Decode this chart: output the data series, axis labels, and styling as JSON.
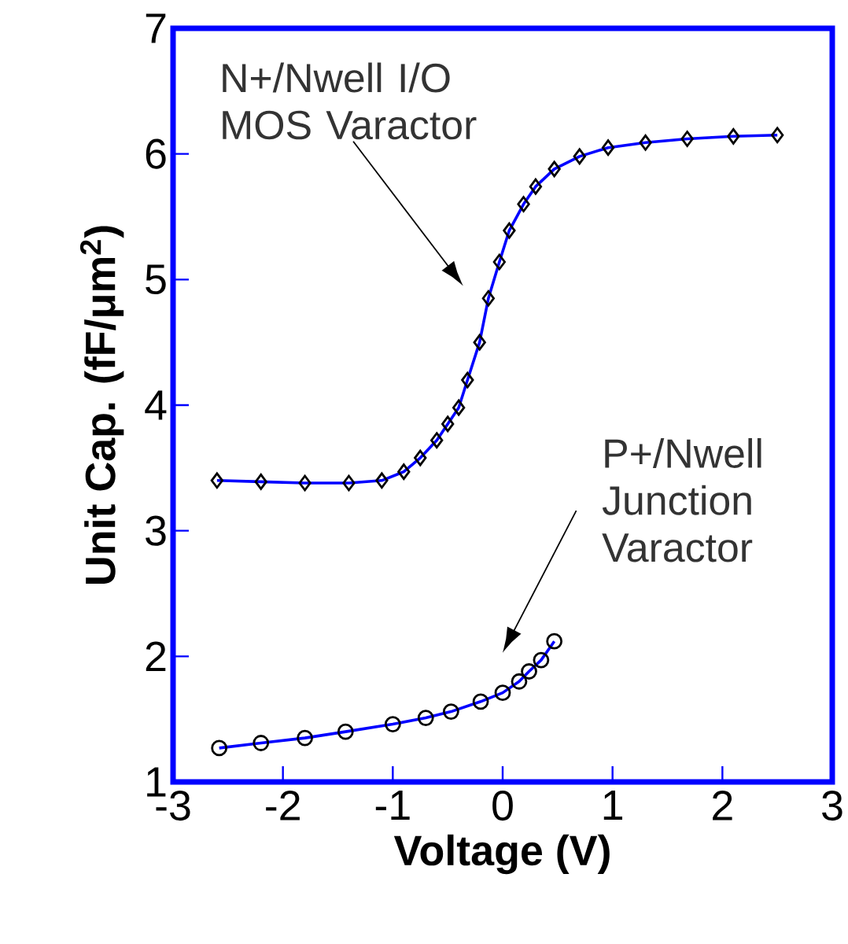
{
  "chart_data": {
    "type": "scatter",
    "xlabel": "Voltage (V)",
    "ylabel": "Unit Cap. (fF/μm$^{2}$)",
    "xlim": [
      -3,
      3
    ],
    "ylim": [
      1,
      7
    ],
    "xticks": [
      -3,
      -2,
      -1,
      0,
      1,
      2,
      3
    ],
    "yticks": [
      1,
      2,
      3,
      4,
      5,
      6,
      7
    ],
    "grid": false,
    "annotations": [
      "N+/Nwell I/O MOS Varactor",
      "P+/Nwell Junction Varactor"
    ],
    "series": [
      {
        "marker": "diamond",
        "color": "#000000",
        "x": [
          -2.6,
          -2.2,
          -1.8,
          -1.4,
          -1.1,
          -0.9,
          -0.75,
          -0.6,
          -0.5,
          -0.4,
          -0.32,
          -0.21,
          -0.13,
          -0.03,
          0.06,
          0.19,
          0.3,
          0.47,
          0.7,
          0.96,
          1.3,
          1.68,
          2.1,
          2.5
        ],
        "values": [
          3.4,
          3.39,
          3.38,
          3.38,
          3.4,
          3.47,
          3.58,
          3.72,
          3.85,
          3.98,
          4.2,
          4.5,
          4.85,
          5.14,
          5.39,
          5.6,
          5.74,
          5.88,
          5.98,
          6.05,
          6.09,
          6.12,
          6.14,
          6.15
        ]
      },
      {
        "type": "line",
        "line_style": "solid",
        "color": "#0000ff",
        "x": [
          -2.6,
          -2.2,
          -1.8,
          -1.4,
          -1.1,
          -0.9,
          -0.75,
          -0.6,
          -0.5,
          -0.4,
          -0.32,
          -0.21,
          -0.13,
          -0.03,
          0.06,
          0.19,
          0.3,
          0.47,
          0.7,
          0.96,
          1.3,
          1.68,
          2.1,
          2.5
        ],
        "values": [
          3.4,
          3.39,
          3.38,
          3.38,
          3.4,
          3.47,
          3.58,
          3.72,
          3.85,
          3.98,
          4.2,
          4.5,
          4.85,
          5.14,
          5.39,
          5.6,
          5.74,
          5.88,
          5.98,
          6.05,
          6.09,
          6.12,
          6.14,
          6.15
        ]
      },
      {
        "marker": "circle",
        "color": "#000000",
        "x": [
          -2.58,
          -2.2,
          -1.8,
          -1.43,
          -1.0,
          -0.7,
          -0.47,
          -0.2,
          0,
          0.15,
          0.24,
          0.35,
          0.47
        ],
        "values": [
          1.27,
          1.31,
          1.35,
          1.4,
          1.46,
          1.51,
          1.56,
          1.64,
          1.71,
          1.8,
          1.88,
          1.97,
          2.12
        ]
      },
      {
        "type": "line",
        "line_style": "solid",
        "color": "#0000ff",
        "x": [
          -2.58,
          -2.2,
          -1.8,
          -1.43,
          -1.0,
          -0.7,
          -0.47,
          -0.2,
          0,
          0.15,
          0.24,
          0.35,
          0.47
        ],
        "values": [
          1.27,
          1.31,
          1.35,
          1.4,
          1.46,
          1.51,
          1.56,
          1.64,
          1.71,
          1.8,
          1.88,
          1.97,
          2.12
        ]
      }
    ]
  }
}
